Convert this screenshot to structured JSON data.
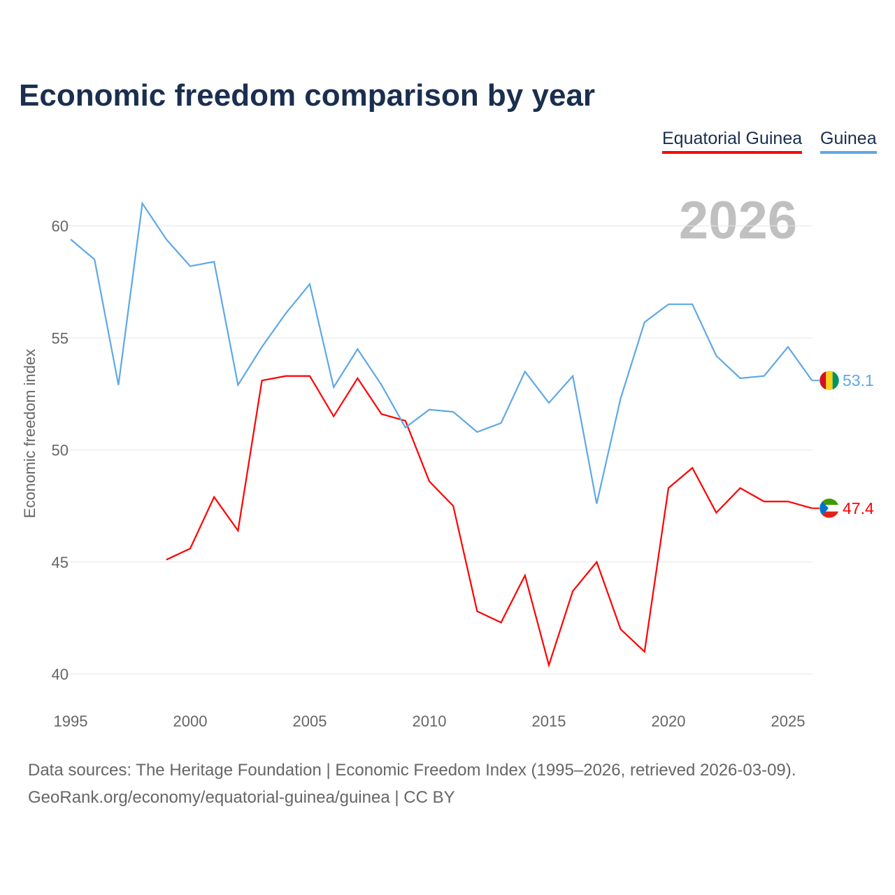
{
  "title": "Economic freedom comparison by year",
  "sources": {
    "line1": "Data sources: The Heritage Foundation | Economic Freedom Index (1995–2026, retrieved 2026-03-09).",
    "line2": "GeoRank.org/economy/equatorial-guinea/guinea | CC BY"
  },
  "chart_data": {
    "type": "line",
    "title": "Economic freedom comparison by year",
    "ylabel": "Economic freedom index",
    "xlabel": "",
    "year_watermark": "2026",
    "xlim": [
      1995,
      2026
    ],
    "ylim": [
      40,
      61.5
    ],
    "xticks": [
      1995,
      2000,
      2005,
      2010,
      2015,
      2020,
      2025
    ],
    "yticks": [
      40,
      45,
      50,
      55,
      60
    ],
    "grid": true,
    "legend_position": "top-right",
    "series": [
      {
        "name": "Equatorial Guinea",
        "color": "#ff0000",
        "end_label": "47.4",
        "x": [
          1999,
          2000,
          2001,
          2002,
          2003,
          2004,
          2005,
          2006,
          2007,
          2008,
          2009,
          2010,
          2011,
          2012,
          2013,
          2014,
          2015,
          2016,
          2017,
          2018,
          2019,
          2020,
          2021,
          2022,
          2023,
          2024,
          2025,
          2026
        ],
        "values": [
          45.1,
          45.6,
          47.9,
          46.4,
          53.1,
          53.3,
          53.3,
          51.5,
          53.2,
          51.6,
          51.3,
          48.6,
          47.5,
          42.8,
          42.3,
          44.4,
          40.4,
          43.7,
          45.0,
          42.0,
          41.0,
          48.3,
          49.2,
          47.2,
          48.3,
          47.7,
          47.7,
          47.4
        ]
      },
      {
        "name": "Guinea",
        "color": "#5ea8e8",
        "end_label": "53.1",
        "x": [
          1995,
          1996,
          1997,
          1998,
          1999,
          2000,
          2001,
          2002,
          2003,
          2004,
          2005,
          2006,
          2007,
          2008,
          2009,
          2010,
          2011,
          2012,
          2013,
          2014,
          2015,
          2016,
          2017,
          2018,
          2019,
          2020,
          2021,
          2022,
          2023,
          2024,
          2025,
          2026
        ],
        "values": [
          59.4,
          58.5,
          52.9,
          61.0,
          59.4,
          58.2,
          58.4,
          52.9,
          54.6,
          56.1,
          57.4,
          52.8,
          54.5,
          52.9,
          51.0,
          51.8,
          51.7,
          50.8,
          51.2,
          53.5,
          52.1,
          53.3,
          47.6,
          52.3,
          55.7,
          56.5,
          56.5,
          54.2,
          53.2,
          53.3,
          54.6,
          53.1
        ]
      }
    ]
  }
}
